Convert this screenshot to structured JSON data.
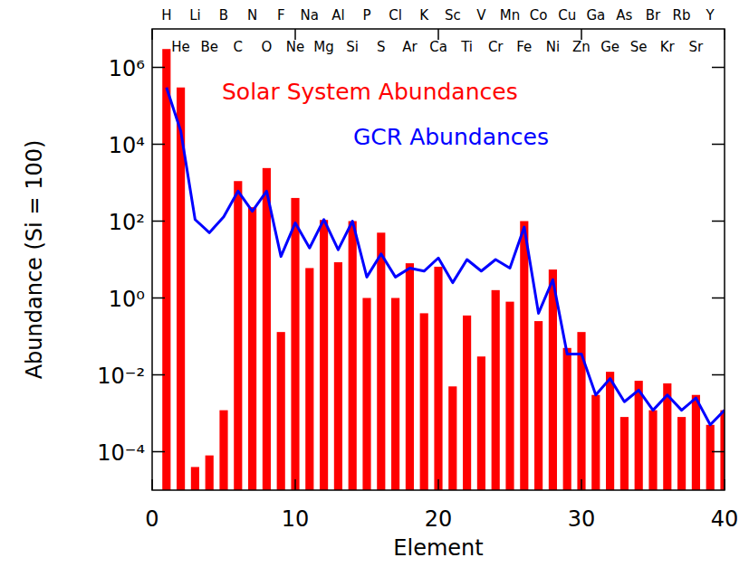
{
  "chart_data": {
    "type": "bar",
    "x_label": "Element",
    "y_label": "Abundance (Si = 100)",
    "log": "y",
    "grid": false,
    "legend": "top",
    "xlim": [
      0,
      40
    ],
    "xticks": [
      0,
      10,
      20,
      30,
      40
    ],
    "ylim": [
      1e-05,
      10000000
    ],
    "yticks": [
      {
        "value": 1000000,
        "label": "10⁶"
      },
      {
        "value": 10000,
        "label": "10⁴"
      },
      {
        "value": 100,
        "label": "10²"
      },
      {
        "value": 1,
        "label": "10⁰"
      },
      {
        "value": 0.01,
        "label": "10⁻²"
      },
      {
        "value": 0.0001,
        "label": "10⁻⁴"
      }
    ],
    "x": [
      1,
      2,
      3,
      4,
      5,
      6,
      7,
      8,
      9,
      10,
      11,
      12,
      13,
      14,
      15,
      16,
      17,
      18,
      19,
      20,
      21,
      22,
      23,
      24,
      25,
      26,
      27,
      28,
      29,
      30,
      31,
      32,
      33,
      34,
      35,
      36,
      37,
      38,
      39,
      40
    ],
    "element_symbols": [
      "H",
      "He",
      "Li",
      "Be",
      "B",
      "C",
      "N",
      "O",
      "F",
      "Ne",
      "Na",
      "Mg",
      "Al",
      "Si",
      "P",
      "S",
      "Cl",
      "Ar",
      "K",
      "Ca",
      "Sc",
      "Ti",
      "V",
      "Cr",
      "Mn",
      "Fe",
      "Co",
      "Ni",
      "Cu",
      "Zn",
      "Ga",
      "Ge",
      "As",
      "Se",
      "Br",
      "Kr",
      "Rb",
      "Sr",
      "Y",
      null
    ],
    "series": [
      {
        "name": "Solar System Abundances",
        "type": "bar",
        "color": "#ff0000",
        "values": [
          3000000,
          300000,
          4e-05,
          8e-05,
          0.0012,
          1100,
          230,
          2400,
          0.13,
          400,
          6,
          107,
          8.5,
          100,
          1.0,
          50,
          1.0,
          8,
          0.4,
          6.5,
          0.005,
          0.35,
          0.03,
          1.6,
          0.8,
          100,
          0.25,
          5.5,
          0.05,
          0.13,
          0.003,
          0.012,
          0.0008,
          0.007,
          0.0012,
          0.006,
          0.0008,
          0.003,
          0.0005,
          0.0012
        ]
      },
      {
        "name": "GCR Abundances",
        "type": "line",
        "color": "#0000ff",
        "values": [
          300000,
          22000,
          110,
          50,
          130,
          600,
          180,
          600,
          12,
          90,
          20,
          110,
          18,
          100,
          3.5,
          14,
          3.5,
          6,
          5,
          11,
          2.5,
          10,
          5,
          10,
          6,
          70,
          0.4,
          3,
          0.035,
          0.035,
          0.003,
          0.008,
          0.002,
          0.004,
          0.0012,
          0.003,
          0.0012,
          0.0025,
          0.0005,
          0.0012
        ]
      }
    ]
  }
}
